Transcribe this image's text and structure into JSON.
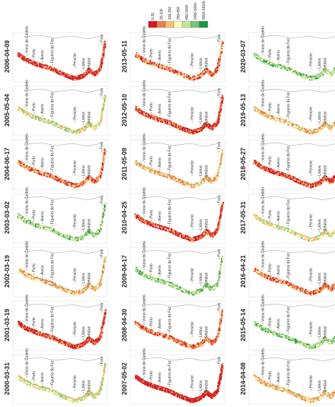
{
  "legend": {
    "labels": [
      "0-25",
      "25-100",
      "100-250",
      "250-450",
      "450-2000",
      "2000-5000",
      "5000-33100"
    ],
    "colors": [
      "#d7191c",
      "#f07c4a",
      "#fdbf6f",
      "#ffffbf",
      "#c2e699",
      "#78c679",
      "#1a9641"
    ]
  },
  "cities": [
    "Viana do Castelo",
    "Porto",
    "Aveiro",
    "Figueira da Foz",
    "Peniche",
    "Lisboa",
    "Setúbal",
    "Faro"
  ],
  "columns": [
    [
      "2006-04-09",
      "2005-05-04",
      "2004-06-17",
      "2003-03-02",
      "2002-03-19",
      "2001-03-19",
      "2000-03-31"
    ],
    [
      "2013-05-11",
      "2012-05-10",
      "2011-05-09",
      "2010-04-25",
      "2009-04-17",
      "2008-04-30",
      "2007-05-02"
    ],
    [
      "2020-03-07",
      "2019-05-13",
      "2018-05-27",
      "2017-05-31",
      "2016-04-21",
      "2015-05-14",
      "2014-04-08"
    ]
  ]
}
